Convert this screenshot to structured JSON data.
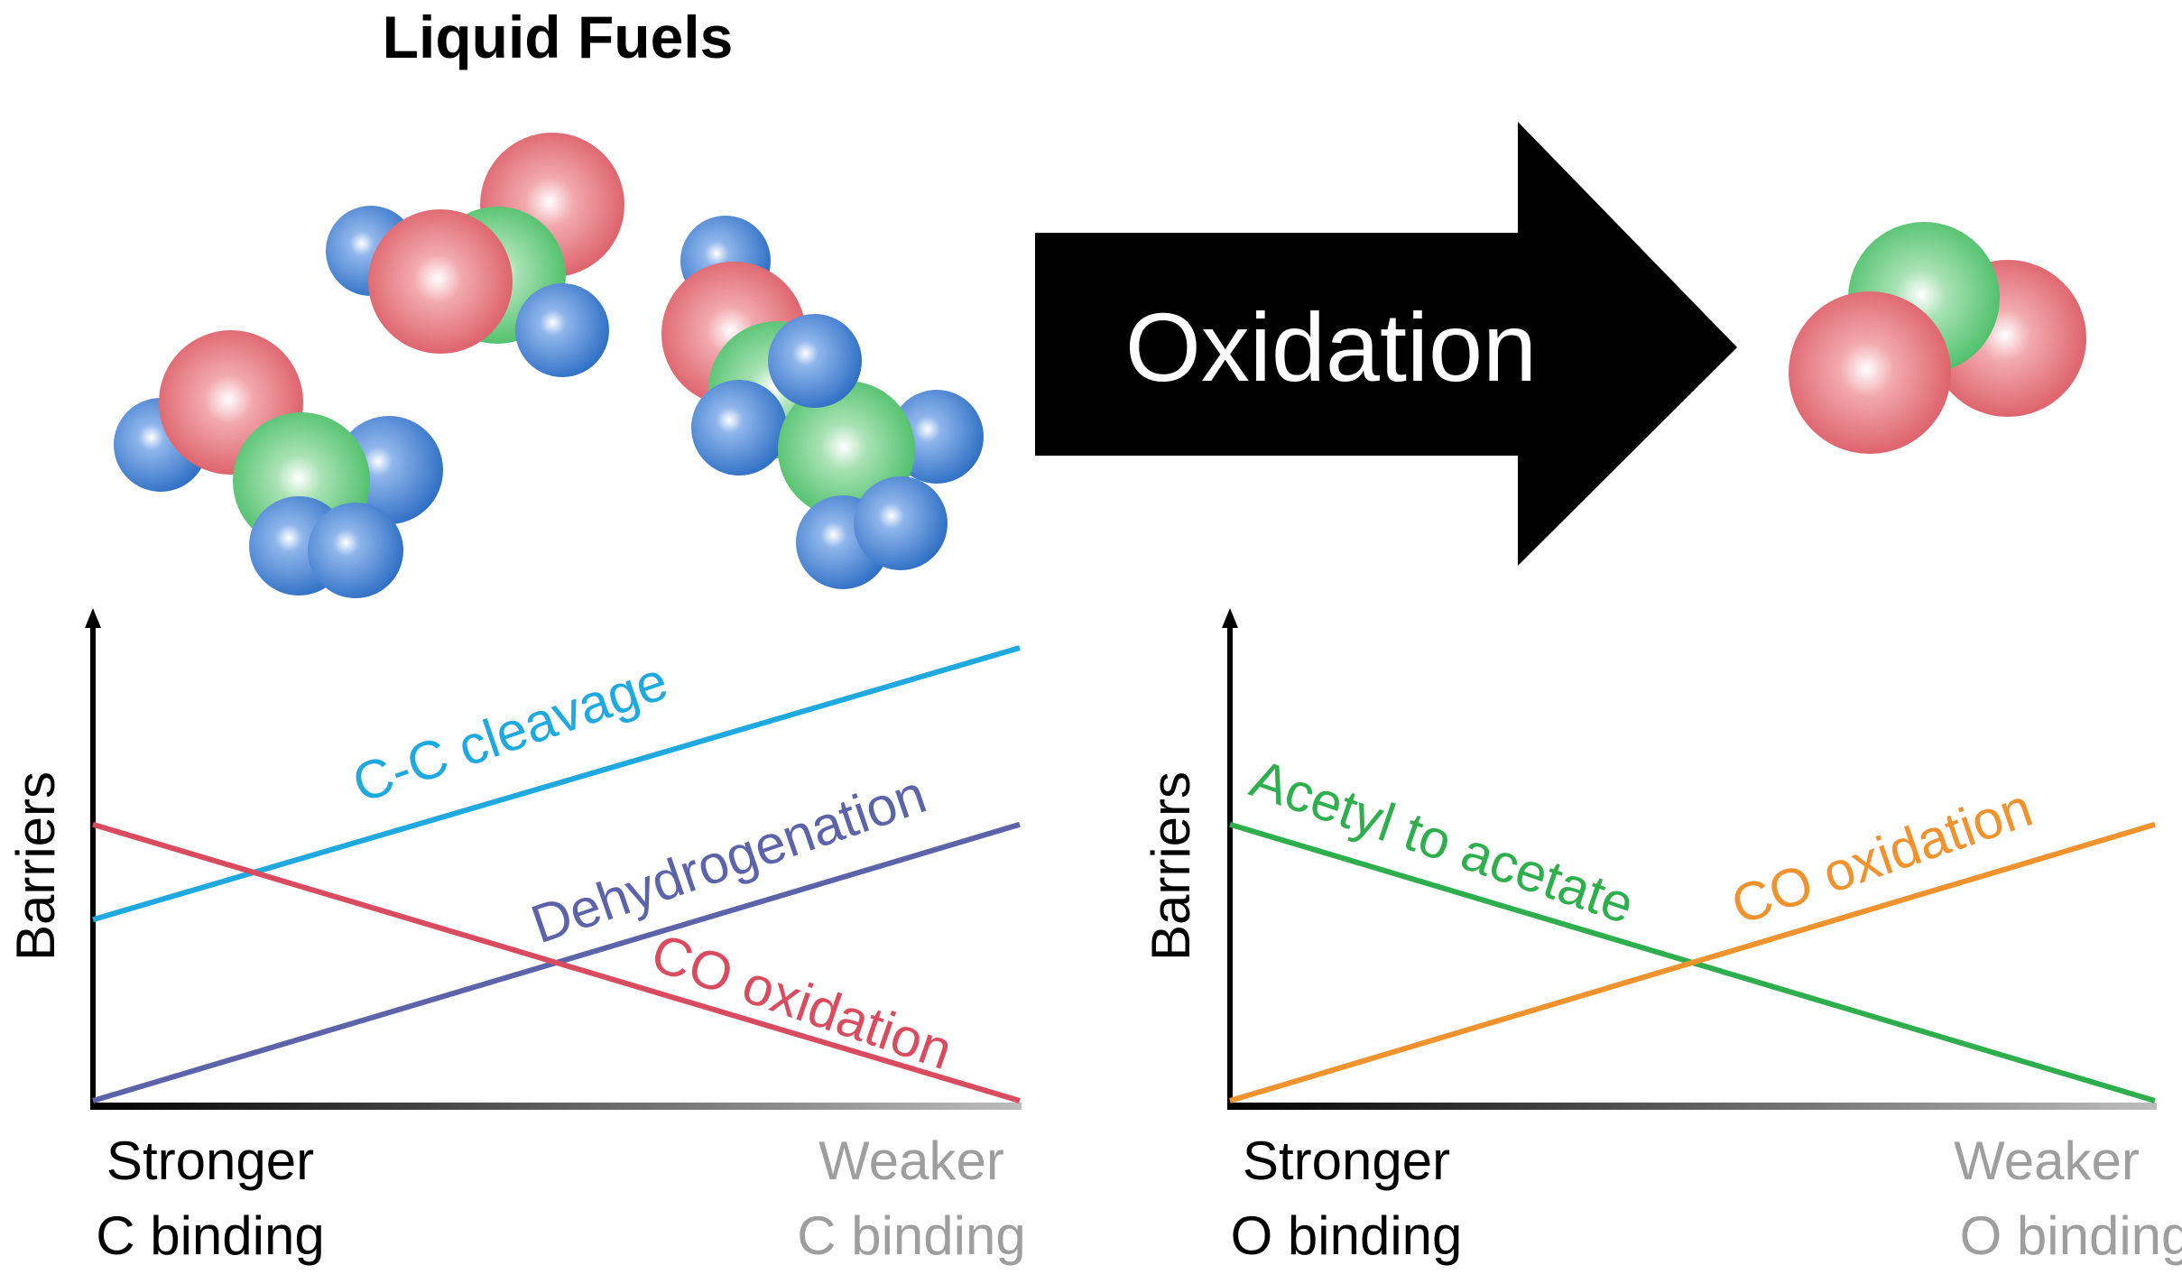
{
  "title": "Liquid Fuels",
  "arrow_label": "Oxidation",
  "colors": {
    "hydrogen": "#2f6fc4",
    "oxygen": "#d9545e",
    "carbon": "#3fba5e",
    "cc_cleavage": "#1fa9de",
    "dehydrogenation": "#5d63a9",
    "co_oxidation_left": "#d94b5e",
    "acetyl": "#2fae4e",
    "co_oxidation_right": "#f0922e",
    "axis_strong": "#000000",
    "axis_weak": "#9e9e9e"
  },
  "chart_data": [
    {
      "type": "line",
      "title": "",
      "ylabel": "Barriers",
      "xlabel_left": {
        "line1": "Stronger",
        "line2": "C binding"
      },
      "xlabel_right": {
        "line1": "Weaker",
        "line2": "C binding"
      },
      "xlim": [
        0,
        1
      ],
      "ylim": [
        0,
        1
      ],
      "series": [
        {
          "name": "C-C cleavage",
          "x": [
            0,
            1
          ],
          "y": [
            0.4,
            1.0
          ]
        },
        {
          "name": "Dehydrogenation",
          "x": [
            0,
            1
          ],
          "y": [
            0.0,
            0.61
          ]
        },
        {
          "name": "CO oxidation",
          "x": [
            0,
            1
          ],
          "y": [
            0.61,
            0.0
          ]
        }
      ]
    },
    {
      "type": "line",
      "title": "",
      "ylabel": "Barriers",
      "xlabel_left": {
        "line1": "Stronger",
        "line2": "O binding"
      },
      "xlabel_right": {
        "line1": "Weaker",
        "line2": "O binding"
      },
      "xlim": [
        0,
        1
      ],
      "ylim": [
        0,
        1
      ],
      "series": [
        {
          "name": "Acetyl to acetate",
          "x": [
            0,
            1
          ],
          "y": [
            0.61,
            0.0
          ]
        },
        {
          "name": "CO oxidation",
          "x": [
            0,
            1
          ],
          "y": [
            0.0,
            0.61
          ]
        }
      ]
    }
  ]
}
